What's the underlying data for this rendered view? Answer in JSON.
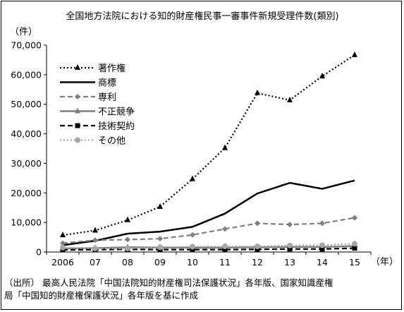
{
  "chart_data": {
    "type": "line",
    "title": "全国地方法院における知的財産権民事一審事件新規受理件数(類別)",
    "ylabel": "（件）",
    "xlabel": "（年）",
    "categories": [
      "2006",
      "07",
      "08",
      "09",
      "10",
      "11",
      "12",
      "13",
      "14",
      "15"
    ],
    "ylim": [
      0,
      70000
    ],
    "yticks": [
      0,
      10000,
      20000,
      30000,
      40000,
      50000,
      60000,
      70000
    ],
    "ytick_labels": [
      "0",
      "10,000",
      "20,000",
      "30,000",
      "40,000",
      "50,000",
      "60,000",
      "70,000"
    ],
    "grid": false,
    "legend_position": "top-left",
    "series": [
      {
        "name": "著作権",
        "values": [
          5700,
          7300,
          10800,
          15300,
          24700,
          35200,
          53800,
          51400,
          59500,
          66700
        ],
        "color": "#000000",
        "dash": "dotted",
        "marker": "triangle"
      },
      {
        "name": "商標",
        "values": [
          2300,
          3800,
          6200,
          6900,
          8500,
          13000,
          19800,
          23400,
          21400,
          24200
        ],
        "color": "#000000",
        "dash": "solid",
        "marker": "none"
      },
      {
        "name": "専利",
        "values": [
          3000,
          4000,
          4200,
          4500,
          5800,
          7800,
          9700,
          9300,
          9700,
          11600
        ],
        "color": "#7f7f7f",
        "dash": "dashed",
        "marker": "diamond"
      },
      {
        "name": "不正競争",
        "values": [
          1200,
          1300,
          1600,
          1500,
          1500,
          1500,
          1600,
          1700,
          1700,
          2000
        ],
        "color": "#7f7f7f",
        "dash": "solid",
        "marker": "triangle"
      },
      {
        "name": "技術契約",
        "values": [
          700,
          800,
          900,
          800,
          800,
          800,
          900,
          1000,
          1000,
          1300
        ],
        "color": "#000000",
        "dash": "dashed",
        "marker": "square"
      },
      {
        "name": "その他",
        "values": [
          1500,
          1200,
          1200,
          1600,
          1800,
          1900,
          1900,
          2200,
          2300,
          2800
        ],
        "color": "#a6a6a6",
        "dash": "dotted",
        "marker": "circle"
      }
    ]
  },
  "source": {
    "line1": "（出所） 最高人民法院「中国法院知的財産権司法保護状況」各年版、国家知識産権",
    "line2": "局「中国知的財産権保護状況」各年版を基に作成"
  }
}
